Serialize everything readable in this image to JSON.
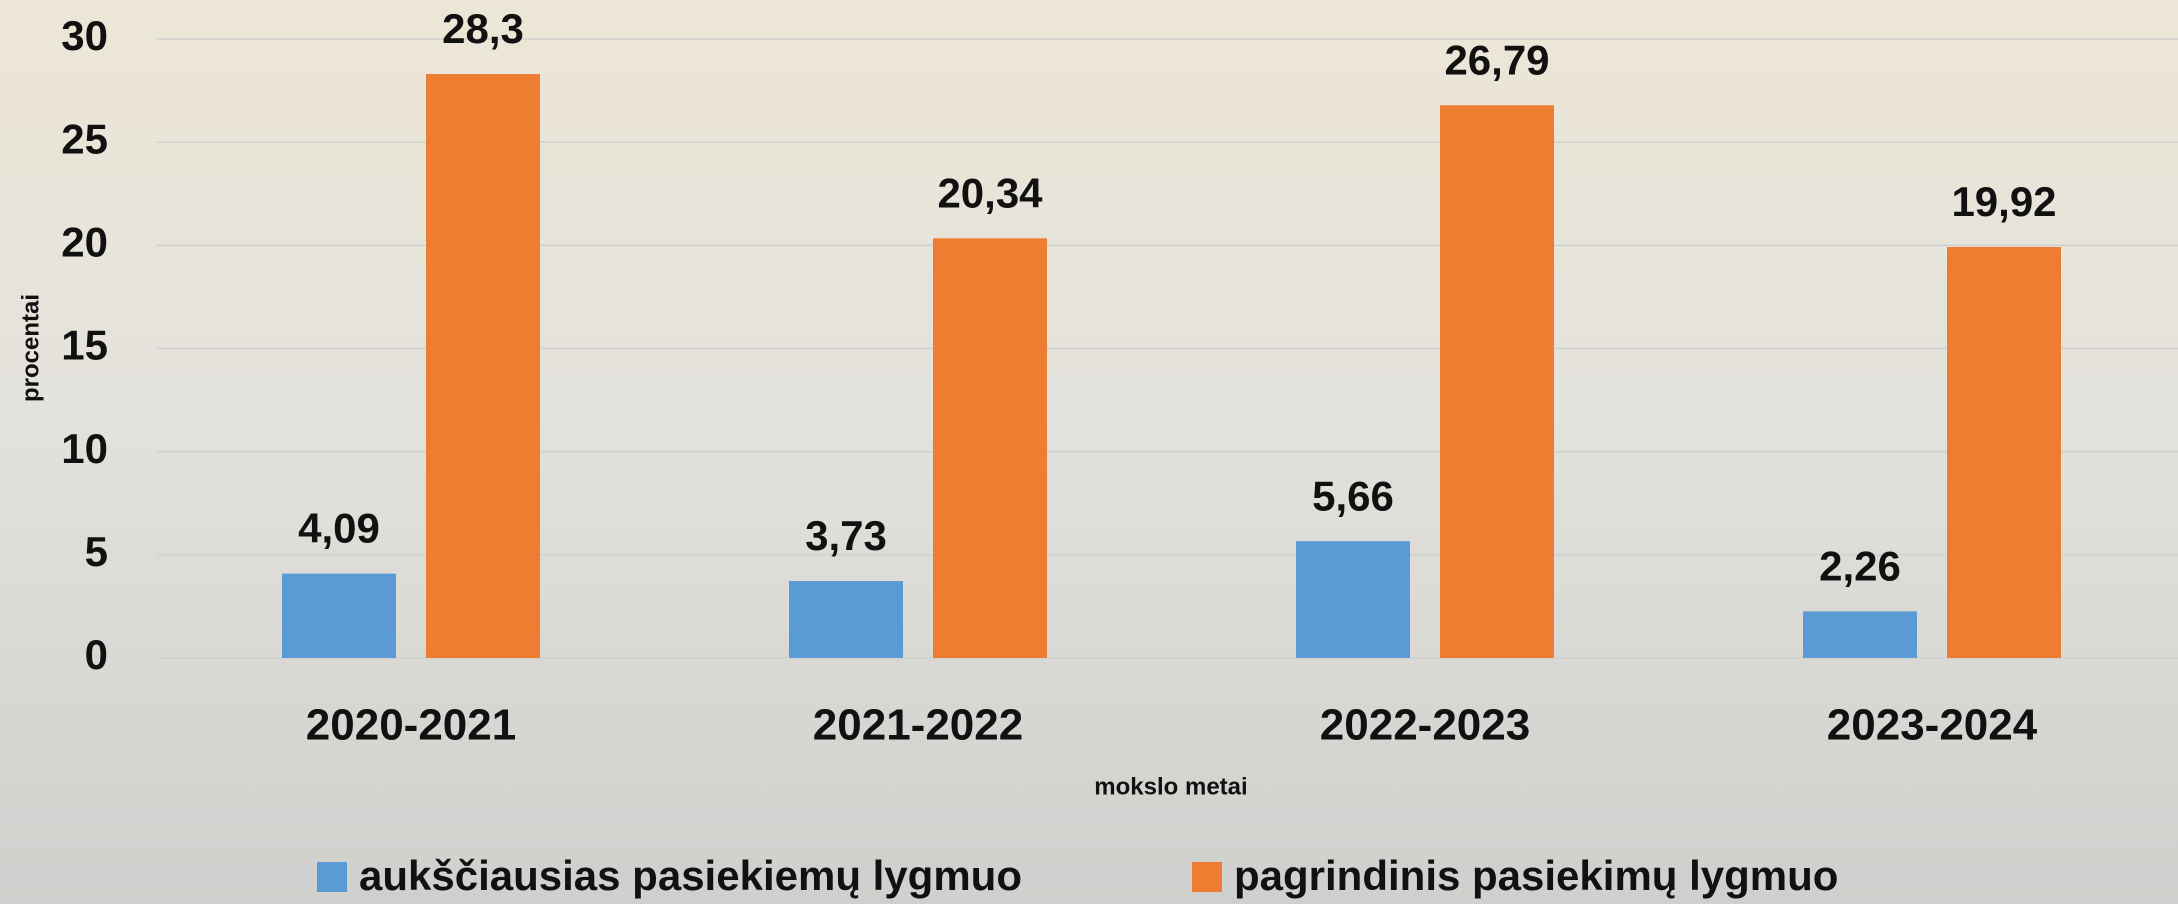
{
  "chart_data": {
    "type": "bar",
    "categories": [
      "2020-2021",
      "2021-2022",
      "2022-2023",
      "2023-2024"
    ],
    "series": [
      {
        "name": "aukščiausias pasiekiemų lygmuo",
        "color": "#5b9bd5",
        "values": [
          4.09,
          3.73,
          5.66,
          2.26
        ],
        "value_labels": [
          "4,09",
          "3,73",
          "5,66",
          "2,26"
        ]
      },
      {
        "name": "pagrindinis pasiekimų lygmuo",
        "color": "#ed7d31",
        "values": [
          28.3,
          20.34,
          26.79,
          19.92
        ],
        "value_labels": [
          "28,3",
          "20,34",
          "26,79",
          "19,92"
        ]
      }
    ],
    "ylabel": "procentai",
    "xlabel": "mokslo metai",
    "ylim": [
      0,
      30
    ],
    "yticks": [
      0,
      5,
      10,
      15,
      20,
      25,
      30
    ],
    "grid": true,
    "legend": "bottom"
  }
}
